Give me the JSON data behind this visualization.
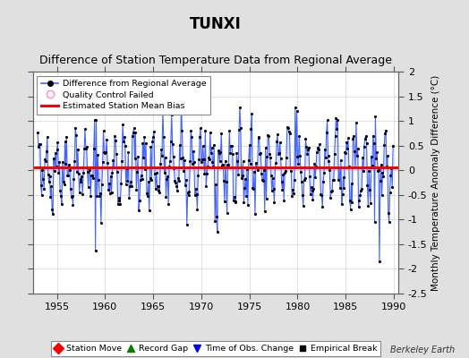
{
  "title": "TUNXI",
  "subtitle": "Difference of Station Temperature Data from Regional Average",
  "ylabel": "Monthly Temperature Anomaly Difference (°C)",
  "xlim": [
    1952.5,
    1990.5
  ],
  "ylim": [
    -2.5,
    2.0
  ],
  "yticks": [
    -2.5,
    -2.0,
    -1.5,
    -1.0,
    -0.5,
    0.0,
    0.5,
    1.0,
    1.5,
    2.0
  ],
  "xticks": [
    1955,
    1960,
    1965,
    1970,
    1975,
    1980,
    1985,
    1990
  ],
  "mean_bias": 0.05,
  "line_color": "#4466ff",
  "fill_color": "#aabbff",
  "dot_color": "#000000",
  "bias_color": "#ff0000",
  "background_color": "#e0e0e0",
  "plot_bg_color": "#ffffff",
  "title_fontsize": 12,
  "subtitle_fontsize": 9,
  "label_fontsize": 7.5,
  "tick_fontsize": 8,
  "watermark": "Berkeley Earth",
  "seed": 42
}
